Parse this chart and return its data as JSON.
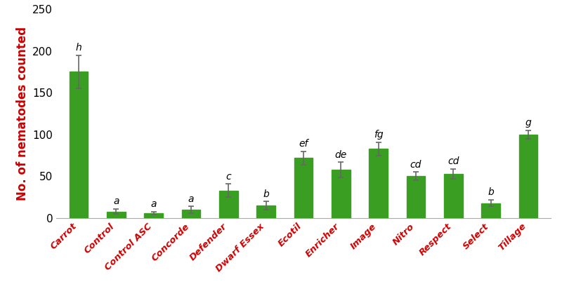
{
  "categories": [
    "Carrot",
    "Control",
    "Control ASC",
    "Concorde",
    "Defender",
    "Dwarf Essex",
    "Ecotil",
    "Enricher",
    "Image",
    "Nitro",
    "Respect",
    "Select",
    "Tillage"
  ],
  "values": [
    175,
    8,
    6,
    10,
    33,
    15,
    72,
    58,
    83,
    50,
    53,
    18,
    100
  ],
  "errors": [
    20,
    3,
    2,
    4,
    8,
    5,
    8,
    9,
    8,
    5,
    6,
    4,
    5
  ],
  "letters": [
    "h",
    "a",
    "a",
    "a",
    "c",
    "b",
    "ef",
    "de",
    "fg",
    "cd",
    "cd",
    "b",
    "g"
  ],
  "bar_color": "#3a9e22",
  "error_color": "#666666",
  "ylabel": "No. of nematodes counted",
  "ylabel_color": "#cc0000",
  "xlabel_color": "#cc0000",
  "letter_color": "#000000",
  "ylim": [
    0,
    250
  ],
  "yticks": [
    0,
    50,
    100,
    150,
    200,
    250
  ],
  "background_color": "#ffffff",
  "bar_width": 0.5,
  "letter_fontsize": 10,
  "ylabel_fontsize": 12,
  "tick_label_fontsize": 9.5,
  "ytick_fontsize": 11
}
